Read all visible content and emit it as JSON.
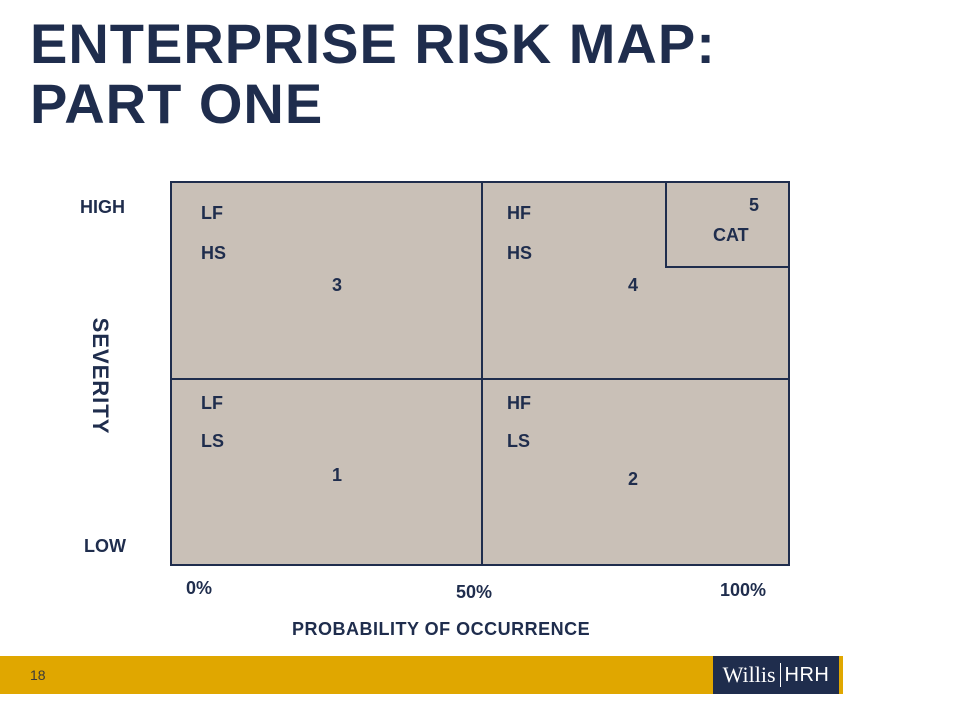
{
  "title": {
    "line1": "ENTERPRISE RISK MAP:",
    "line2": "PART ONE"
  },
  "y_axis": {
    "high": "HIGH",
    "low": "LOW",
    "title": "SEVERITY"
  },
  "quadrants": {
    "top_left": {
      "line1": "LF",
      "line2": "HS",
      "number": "3"
    },
    "top_right": {
      "line1": "HF",
      "line2": "HS",
      "number": "4"
    },
    "bottom_left": {
      "line1": "LF",
      "line2": "LS",
      "number": "1"
    },
    "bottom_right": {
      "line1": "HF",
      "line2": "LS",
      "number": "2"
    },
    "cat": {
      "number": "5",
      "label": "CAT"
    }
  },
  "x_axis": {
    "ticks": [
      "0%",
      "50%",
      "100%"
    ],
    "title": "PROBABILITY OF OCCURRENCE"
  },
  "footer": {
    "page_number": "18",
    "logo_left": "Willis",
    "logo_right": "HRH"
  },
  "colors": {
    "navy": "#1f2d4d",
    "grid_fill": "#c9c0b7",
    "gold": "#e0a700"
  }
}
